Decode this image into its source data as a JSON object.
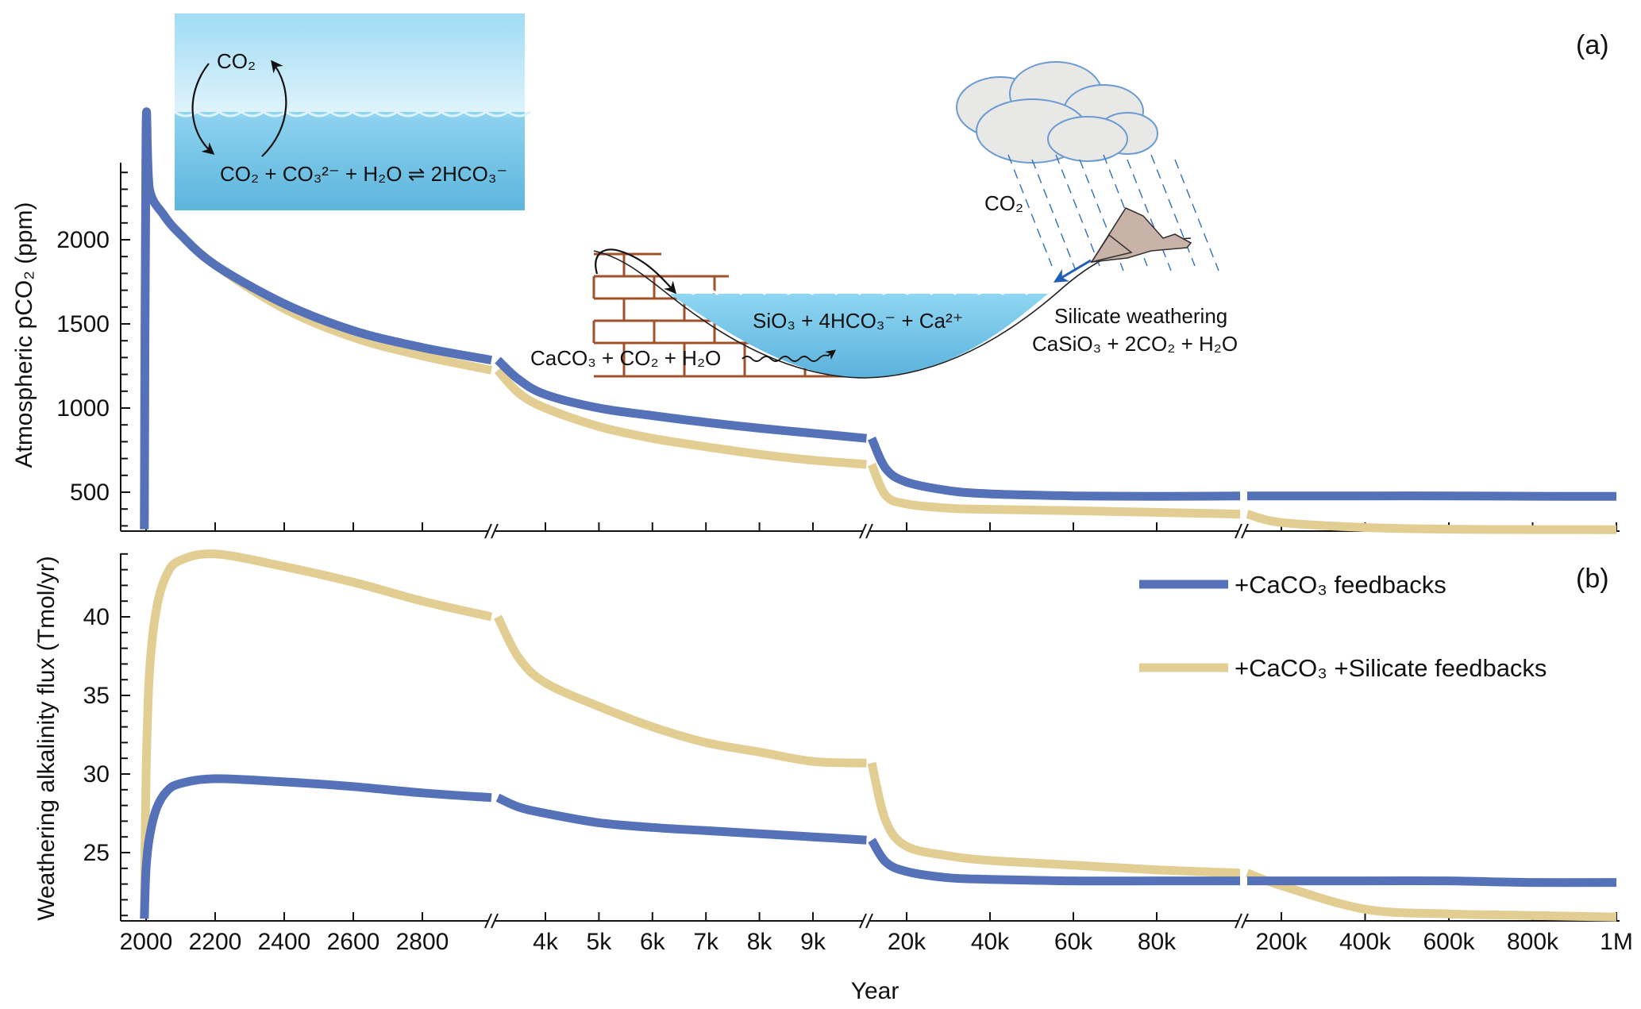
{
  "colors": {
    "caco3": "#5572b9",
    "silicate": "#e2cd93",
    "axis": "#111111",
    "water_top": "#9fdcf5",
    "water_bottom": "#5cb5dc",
    "brick": "#a0522d",
    "cloud_fill": "#e8e8e6",
    "cloud_stroke": "#6b9bd1",
    "rock": "#c9b3a8"
  },
  "panel_a": {
    "label": "(a)",
    "ylabel": "Atmospheric pCO₂ (ppm)"
  },
  "panel_b": {
    "label": "(b)",
    "ylabel": "Weathering alkalinity flux (Tmol/yr)"
  },
  "xaxis": {
    "title": "Year",
    "tick_labels": [
      "2000",
      "2200",
      "2400",
      "2600",
      "2800",
      "4k",
      "5k",
      "6k",
      "7k",
      "8k",
      "9k",
      "20k",
      "40k",
      "60k",
      "80k",
      "200k",
      "400k",
      "600k",
      "800k",
      "1M"
    ]
  },
  "legend": {
    "position": "upper-right of panel (b)",
    "items": [
      {
        "label": "+CaCO₃ feedbacks",
        "series": "caco3"
      },
      {
        "label": "+CaCO₃ +Silicate feedbacks",
        "series": "silicate"
      }
    ]
  },
  "insets": {
    "ocean_box": {
      "top_label": "CO₂",
      "equation": "CO₂ + CO₃²⁻ + H₂O ⇌ 2HCO₃⁻"
    },
    "basin": {
      "dissolved": "SiO₃ + 4HCO₃⁻ + Ca²⁺",
      "carbonate": "CaCO₃ + CO₂ + H₂O",
      "rain_label": "CO₂",
      "silicate_title": "Silicate weathering",
      "silicate_eq": "CaSiO₃ + 2CO₂ + H₂O"
    }
  },
  "chart_data": [
    {
      "type": "line",
      "title": "(a)",
      "xlabel": "Year",
      "ylabel": "Atmospheric pCO2 (ppm)",
      "x_scale": "broken axis with 4 linear segments: 1925-3000, 3000-10k, 10k-100k, 100k-1M",
      "ylim": [
        270,
        2450
      ],
      "yticks": [
        500,
        1000,
        1500,
        2000
      ],
      "grid": false,
      "x": [
        1995,
        2000,
        2010,
        2050,
        2100,
        2200,
        2400,
        2600,
        2800,
        3000,
        3500,
        4000,
        5000,
        6000,
        7000,
        8000,
        9000,
        10000,
        15000,
        20000,
        30000,
        40000,
        60000,
        80000,
        100000,
        200000,
        400000,
        600000,
        800000,
        1000000
      ],
      "series": [
        {
          "name": "+CaCO3 feedbacks",
          "values": [
            280,
            2660,
            2300,
            2150,
            2030,
            1850,
            1620,
            1460,
            1360,
            1285,
            1170,
            1080,
            1000,
            955,
            915,
            880,
            850,
            820,
            640,
            560,
            510,
            490,
            478,
            475,
            478,
            478,
            478,
            478,
            476,
            475
          ]
        },
        {
          "name": "+CaCO3 +Silicate feedbacks",
          "values": [
            280,
            2660,
            2300,
            2150,
            2030,
            1850,
            1590,
            1420,
            1310,
            1225,
            1090,
            1000,
            890,
            820,
            770,
            725,
            690,
            665,
            480,
            430,
            405,
            398,
            390,
            380,
            370,
            320,
            290,
            280,
            278,
            277
          ]
        }
      ]
    },
    {
      "type": "line",
      "title": "(b)",
      "xlabel": "Year",
      "ylabel": "Weathering alkalinity flux (Tmol/yr)",
      "ylim": [
        20.8,
        44.1
      ],
      "yticks": [
        25,
        30,
        35,
        40
      ],
      "grid": false,
      "x": [
        1995,
        2000,
        2010,
        2030,
        2060,
        2100,
        2200,
        2400,
        2600,
        2800,
        3000,
        3500,
        4000,
        5000,
        6000,
        7000,
        8000,
        9000,
        10000,
        15000,
        20000,
        30000,
        40000,
        60000,
        80000,
        100000,
        200000,
        400000,
        600000,
        800000,
        1000000
      ],
      "series": [
        {
          "name": "+CaCO3 feedbacks",
          "values": [
            20.8,
            24.0,
            26.0,
            27.8,
            28.9,
            29.4,
            29.7,
            29.5,
            29.2,
            28.8,
            28.5,
            27.9,
            27.5,
            26.9,
            26.6,
            26.4,
            26.2,
            26.0,
            25.8,
            24.4,
            23.8,
            23.4,
            23.3,
            23.2,
            23.2,
            23.2,
            23.2,
            23.2,
            23.2,
            23.1,
            23.1
          ]
        },
        {
          "name": "+CaCO3 +Silicate feedbacks",
          "values": [
            20.8,
            30.0,
            36.5,
            40.5,
            42.7,
            43.6,
            44.0,
            43.2,
            42.2,
            41.0,
            40.0,
            37.4,
            35.8,
            34.3,
            33.0,
            32.0,
            31.4,
            30.8,
            30.7,
            27.0,
            25.4,
            24.8,
            24.5,
            24.2,
            23.9,
            23.7,
            22.9,
            21.4,
            21.1,
            21.0,
            20.9
          ]
        }
      ]
    }
  ]
}
